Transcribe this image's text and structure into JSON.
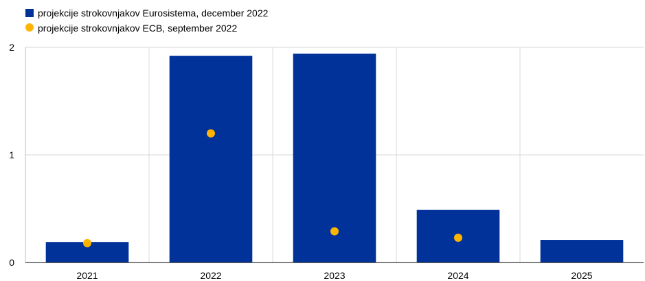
{
  "chart_data": {
    "type": "bar",
    "categories": [
      "2021",
      "2022",
      "2023",
      "2024",
      "2025"
    ],
    "series": [
      {
        "name": "projekcije strokovnjakov Eurosistema, december 2022",
        "kind": "bar",
        "color": "#003299",
        "values": [
          0.19,
          1.92,
          1.94,
          0.49,
          0.21
        ]
      },
      {
        "name": "projekcije strokovnjakov ECB, september 2022",
        "kind": "marker",
        "color": "#FFB400",
        "values": [
          0.18,
          1.2,
          0.29,
          0.23,
          null
        ]
      }
    ],
    "ylim": [
      0,
      2
    ],
    "yticks": [
      "0",
      "1",
      "2"
    ],
    "grid": true,
    "legend_position": "top-left"
  }
}
